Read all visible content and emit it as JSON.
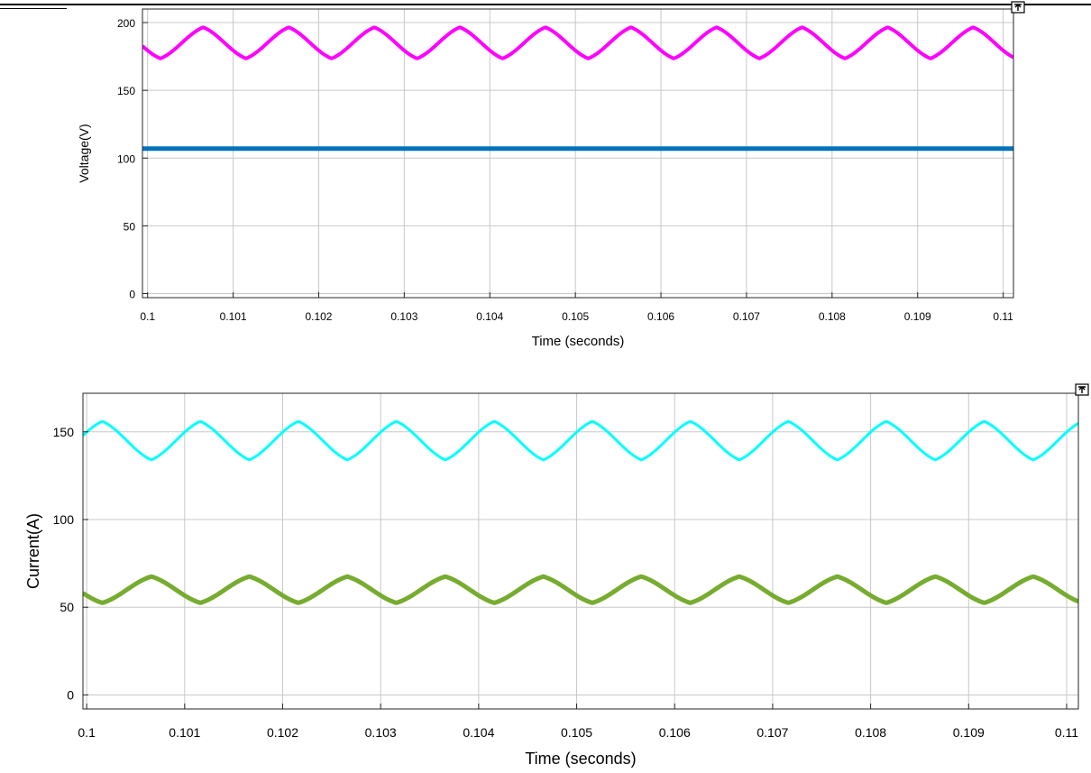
{
  "chart_data": [
    {
      "type": "line",
      "xlabel": "Time (seconds)",
      "ylabel": "Voltage(V)",
      "xlim": [
        0.09994,
        0.11012
      ],
      "ylim": [
        -3,
        210
      ],
      "xticks": [
        0.1,
        0.101,
        0.102,
        0.103,
        0.104,
        0.105,
        0.106,
        0.107,
        0.108,
        0.109,
        0.11
      ],
      "xtick_labels": [
        "0.1",
        "0.101",
        "0.102",
        "0.103",
        "0.104",
        "0.105",
        "0.106",
        "0.107",
        "0.108",
        "0.109",
        "0.11"
      ],
      "yticks": [
        0,
        50,
        100,
        150,
        200
      ],
      "ytick_labels": [
        "0",
        "50",
        "100",
        "150",
        "200"
      ],
      "grid": true,
      "series": [
        {
          "color": "#ff00ff",
          "kind": "ripple",
          "mean": 185,
          "amplitude": 11.5,
          "period": 0.001,
          "peak_time": 0.10015,
          "line_width": 4
        },
        {
          "color": "#0072bd",
          "kind": "constant",
          "value": 107,
          "line_width": 5
        }
      ]
    },
    {
      "type": "line",
      "xlabel": "Time (seconds)",
      "ylabel": "Current(A)",
      "xlim": [
        0.099962,
        0.11012
      ],
      "ylim": [
        -8,
        172
      ],
      "xticks": [
        0.1,
        0.101,
        0.102,
        0.103,
        0.104,
        0.105,
        0.106,
        0.107,
        0.108,
        0.109,
        0.11
      ],
      "xtick_labels": [
        "0.1",
        "0.101",
        "0.102",
        "0.103",
        "0.104",
        "0.105",
        "0.106",
        "0.107",
        "0.108",
        "0.109",
        "0.11"
      ],
      "yticks": [
        0,
        50,
        100,
        150
      ],
      "ytick_labels": [
        "0",
        "50",
        "100",
        "150"
      ],
      "grid": true,
      "series": [
        {
          "color": "#00ffff",
          "kind": "ripple",
          "mean": 145,
          "amplitude": 11,
          "period": 0.001,
          "peak_time": 0.09966,
          "line_width": 3
        },
        {
          "color": "#77ac30",
          "kind": "ripple",
          "mean": 60,
          "amplitude": 7.5,
          "period": 0.001,
          "peak_time": 0.10016,
          "line_width": 5
        }
      ]
    }
  ]
}
